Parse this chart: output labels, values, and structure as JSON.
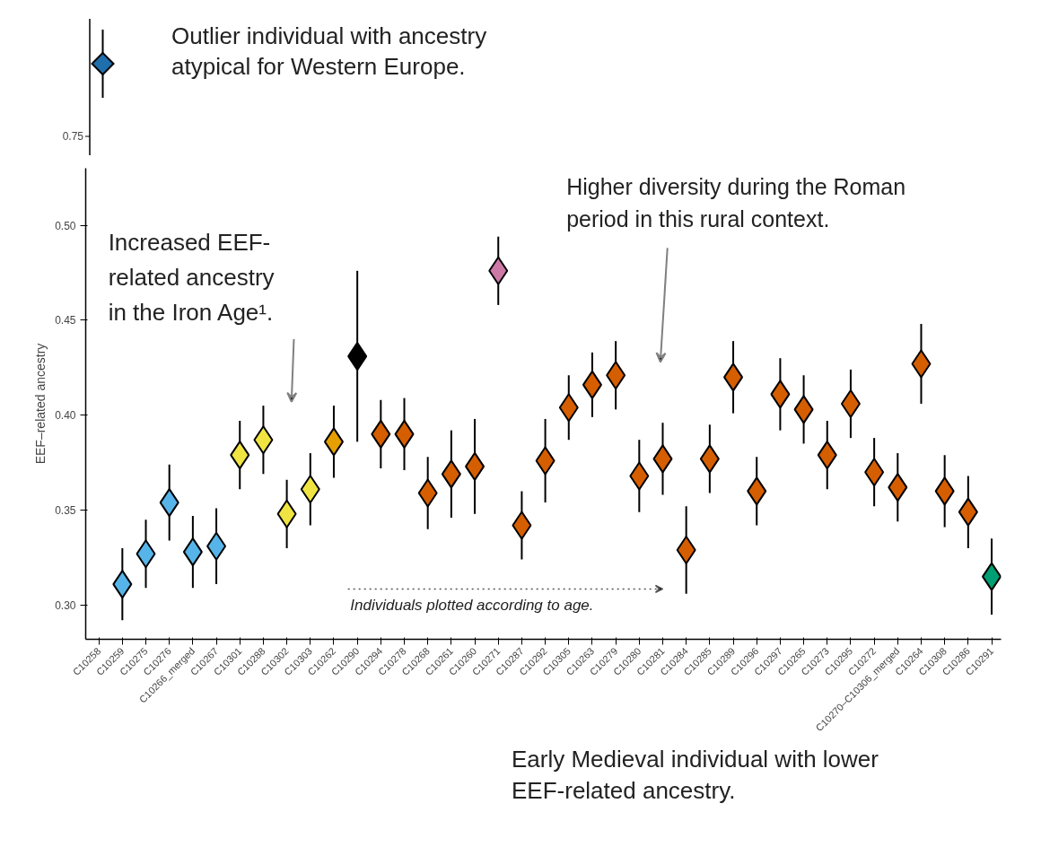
{
  "chart_data": [
    {
      "type": "other",
      "annotations": [
        "Outlier individual with ancestry\natypical for Western Europe.",
        "0.75"
      ]
    },
    {
      "type": "scatter",
      "marker": "diamond",
      "grid": false,
      "ylabel": "EEF–related ancestry",
      "categories": [
        "C10258",
        "C10259",
        "C10275",
        "C10276",
        "C10266_merged",
        "C10267",
        "C10301",
        "C10288",
        "C10302",
        "C10303",
        "C10262",
        "C10290",
        "C10294",
        "C10278",
        "C10268",
        "C10261",
        "C10260",
        "C10271",
        "C10287",
        "C10292",
        "C10305",
        "C10263",
        "C10279",
        "C10280",
        "C10281",
        "C10284",
        "C10285",
        "C10289",
        "C10296",
        "C10297",
        "C10265",
        "C10273",
        "C10295",
        "C10272",
        "C10270–C10306_merged",
        "C10264",
        "C10308",
        "C10286",
        "C10291"
      ],
      "values": [
        null,
        0.311,
        0.327,
        0.354,
        0.328,
        0.331,
        0.379,
        0.387,
        0.348,
        0.361,
        0.386,
        0.431,
        0.39,
        0.39,
        0.359,
        0.369,
        0.373,
        0.476,
        0.342,
        0.376,
        0.404,
        0.416,
        0.421,
        0.368,
        0.377,
        0.329,
        0.377,
        0.42,
        0.36,
        0.411,
        0.403,
        0.379,
        0.406,
        0.37,
        0.362,
        0.427,
        0.36,
        0.349,
        0.315
      ],
      "errors": [
        null,
        0.019,
        0.018,
        0.02,
        0.019,
        0.02,
        0.018,
        0.018,
        0.018,
        0.019,
        0.019,
        0.045,
        0.018,
        0.019,
        0.019,
        0.023,
        0.025,
        0.018,
        0.018,
        0.022,
        0.017,
        0.017,
        0.018,
        0.019,
        0.019,
        0.023,
        0.018,
        0.019,
        0.018,
        0.019,
        0.018,
        0.018,
        0.018,
        0.018,
        0.018,
        0.021,
        0.019,
        0.019,
        0.02
      ],
      "colors": [
        null,
        "#56b4e9",
        "#56b4e9",
        "#56b4e9",
        "#56b4e9",
        "#56b4e9",
        "#f0e442",
        "#f0e442",
        "#f0e442",
        "#f0e442",
        "#e69f00",
        "#000000",
        "#d55e00",
        "#d55e00",
        "#d55e00",
        "#d55e00",
        "#d55e00",
        "#cc79a7",
        "#d55e00",
        "#d55e00",
        "#d55e00",
        "#d55e00",
        "#d55e00",
        "#d55e00",
        "#d55e00",
        "#d55e00",
        "#d55e00",
        "#d55e00",
        "#d55e00",
        "#d55e00",
        "#d55e00",
        "#d55e00",
        "#d55e00",
        "#d55e00",
        "#d55e00",
        "#d55e00",
        "#d55e00",
        "#d55e00",
        "#009e73"
      ],
      "ylim": [
        0.282,
        0.53
      ],
      "yticks": [
        {
          "value": 0.3,
          "label": "0.30"
        },
        0.35,
        {
          "value": 0.4,
          "label": "0.40"
        },
        0.45,
        {
          "value": 0.5,
          "label": "0.50"
        }
      ],
      "annotations": [
        "Increased EEF-\nrelated ancestry\nin the Iron Age¹.",
        "Higher diversity during the Roman\nperiod in this rural context.",
        "Individuals plotted according to age.",
        "Early Medieval individual with lower\nEEF-related ancestry."
      ]
    }
  ]
}
